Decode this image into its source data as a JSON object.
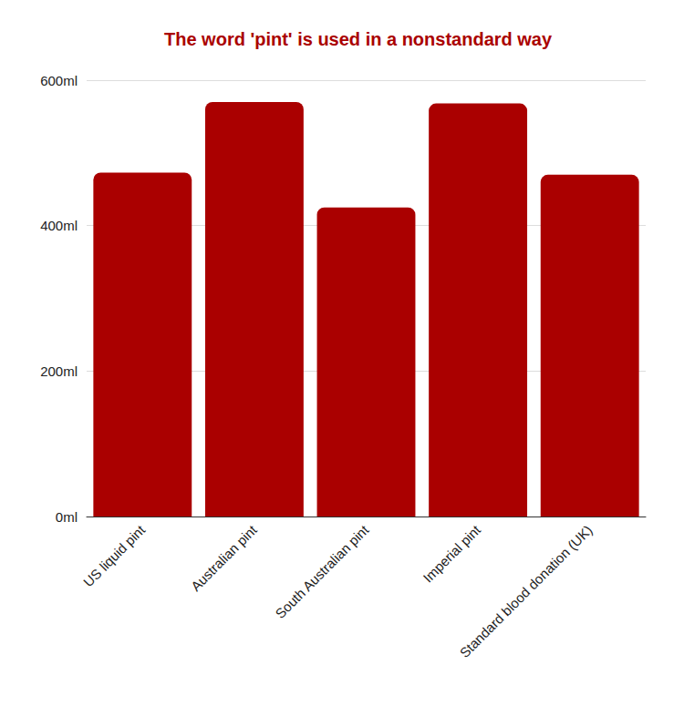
{
  "chart_data": {
    "type": "bar",
    "title": "The word 'pint' is used in a nonstandard way",
    "categories": [
      "US liquid pint",
      "Australian pint",
      "South Australian pint",
      "Imperial pint",
      "Standard blood donation (UK)"
    ],
    "values": [
      473,
      570,
      425,
      568,
      470
    ],
    "color": "#aa0000",
    "ylim": [
      0,
      600
    ],
    "yticks": [
      {
        "value": 0,
        "label": "0ml"
      },
      {
        "value": 200,
        "label": "200ml"
      },
      {
        "value": 400,
        "label": "400ml"
      },
      {
        "value": 600,
        "label": "600ml"
      }
    ],
    "grid": true
  }
}
